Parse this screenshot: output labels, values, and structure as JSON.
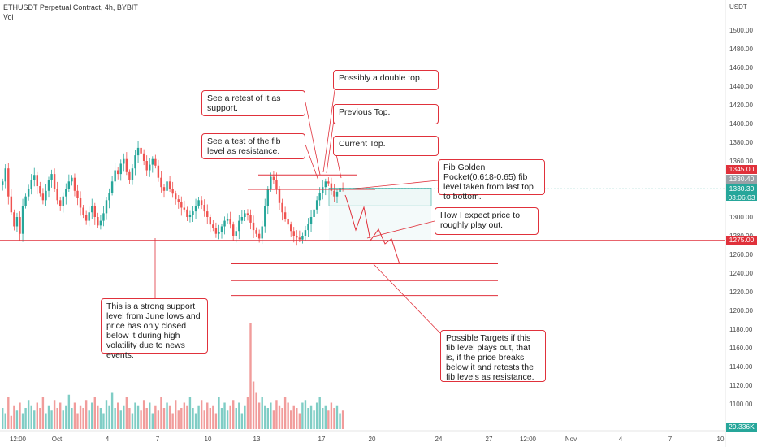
{
  "header": {
    "symbol_line": "ETHUSDT Perpetual Contract, 4h, BYBIT",
    "volume_label": "Vol"
  },
  "axis": {
    "currency": "USDT",
    "price_ticks": [
      "1500.00",
      "1480.00",
      "1460.00",
      "1440.00",
      "1420.00",
      "1400.00",
      "1380.00",
      "1360.00",
      "1340.00",
      "1320.00",
      "1300.00",
      "1280.00",
      "1260.00",
      "1240.00",
      "1220.00",
      "1200.00",
      "1180.00",
      "1160.00",
      "1140.00",
      "1120.00",
      "1100.00"
    ],
    "time_ticks": [
      "12:00",
      "Oct",
      "4",
      "7",
      "10",
      "13",
      "17",
      "20",
      "24",
      "27",
      "12:00",
      "Nov",
      "4",
      "7",
      "10"
    ]
  },
  "badges": {
    "level_high": "1345.00",
    "level_fib": "1330.40",
    "last_price": "1330.30",
    "countdown": "03:06:03",
    "support": "1275.00",
    "volume_value": "29.336K"
  },
  "annotations": {
    "retest": "See a retest of it as support.",
    "fib_test": "See a test of the fib level as resistance.",
    "double_top": "Possibly a double top.",
    "previous_top": "Previous Top.",
    "current_top": "Current Top.",
    "golden_pocket": "Fib Golden Pocket(0.618-0.65) fib level taken from last top to bottom.",
    "expectation": "How I expect price to roughly play out.",
    "support_note": "This is a strong support level from June lows and price has only closed below it during high volatility due to news events.",
    "targets": "Possible Targets if this fib level plays out, that is, if the price breaks below it and retests the fib levels as resistance."
  },
  "chart_data": {
    "type": "candlestick",
    "symbol": "ETHUSDT",
    "timeframe": "4h",
    "exchange": "BYBIT",
    "ylim": [
      1095,
      1520
    ],
    "key_levels": {
      "support": 1275.0,
      "fib_resistance": 1330.4,
      "double_top": 1345.0,
      "fib_pocket_low": 1312.0,
      "target_levels": [
        1250.0,
        1232.0,
        1216.0
      ]
    },
    "closes": [
      1338,
      1352,
      1322,
      1305,
      1290,
      1300,
      1282,
      1312,
      1322,
      1330,
      1340,
      1345,
      1333,
      1325,
      1318,
      1328,
      1340,
      1346,
      1330,
      1318,
      1312,
      1322,
      1330,
      1338,
      1342,
      1328,
      1320,
      1310,
      1302,
      1296,
      1305,
      1312,
      1300,
      1291,
      1296,
      1304,
      1318,
      1326,
      1338,
      1350,
      1346,
      1357,
      1362,
      1348,
      1340,
      1352,
      1366,
      1374,
      1368,
      1360,
      1350,
      1356,
      1362,
      1355,
      1342,
      1332,
      1328,
      1338,
      1330,
      1325,
      1319,
      1316,
      1310,
      1308,
      1300,
      1302,
      1306,
      1312,
      1318,
      1313,
      1306,
      1300,
      1292,
      1288,
      1282,
      1284,
      1290,
      1296,
      1298,
      1292,
      1280,
      1285,
      1296,
      1300,
      1304,
      1302,
      1294,
      1286,
      1282,
      1277,
      1290,
      1312,
      1330,
      1343,
      1340,
      1330,
      1315,
      1305,
      1298,
      1292,
      1285,
      1280,
      1278,
      1276,
      1280,
      1286,
      1293,
      1300,
      1308,
      1318,
      1326,
      1332,
      1338,
      1336,
      1328,
      1322,
      1327,
      1331,
      1330.3
    ],
    "volumes": [
      8,
      6,
      12,
      5,
      9,
      7,
      10,
      6,
      8,
      11,
      9,
      7,
      10,
      8,
      12,
      6,
      9,
      7,
      11,
      8,
      10,
      7,
      9,
      13,
      8,
      10,
      6,
      9,
      8,
      11,
      7,
      10,
      12,
      9,
      8,
      6,
      11,
      9,
      14,
      8,
      10,
      7,
      9,
      12,
      8,
      6,
      10,
      9,
      7,
      11,
      8,
      10,
      6,
      9,
      7,
      12,
      8,
      10,
      9,
      6,
      11,
      7,
      8,
      10,
      9,
      12,
      8,
      6,
      9,
      11,
      7,
      10,
      8,
      9,
      6,
      12,
      8,
      10,
      7,
      9,
      11,
      8,
      10,
      6,
      9,
      12,
      40,
      18,
      14,
      10,
      12,
      9,
      8,
      10,
      7,
      11,
      9,
      8,
      12,
      10,
      7,
      9,
      8,
      6,
      10,
      11,
      8,
      9,
      7,
      10,
      12,
      8,
      9,
      7,
      10,
      8,
      9,
      6,
      7
    ],
    "volume_last": "29.336K"
  }
}
